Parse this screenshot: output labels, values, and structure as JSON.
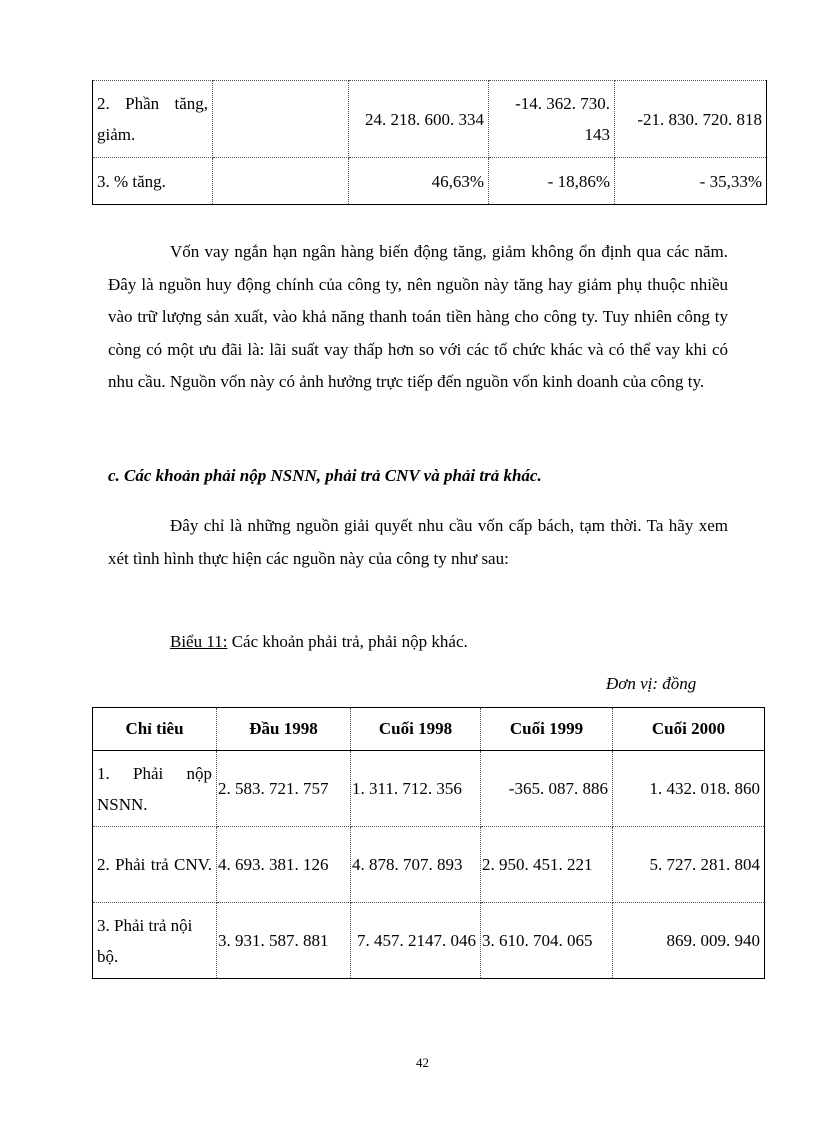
{
  "table_top": {
    "rows": [
      {
        "label": "2. Phần tăng, giảm.",
        "c1": "",
        "c2": "24. 218. 600. 334",
        "c3": "-14. 362. 730. 143",
        "c4": "-21. 830. 720. 818"
      },
      {
        "label": "3. % tăng.",
        "c1": "",
        "c2": "46,63%",
        "c3": "- 18,86%",
        "c4": "- 35,33%"
      }
    ]
  },
  "paragraph1": "Vốn vay ngắn hạn ngân hàng biến động tăng, giảm không ổn định qua các năm. Đây là nguồn huy động chính của công ty, nên nguồn này tăng hay giảm phụ thuộc nhiều vào trữ lượng sản xuất, vào khả năng thanh toán tiền hàng cho công ty. Tuy nhiên công ty còng có một ưu đãi là: lãi suất vay thấp hơn so với các tổ chức khác và có thể vay khi có nhu cầu. Nguồn vốn này có ảnh hưởng trực tiếp đến nguồn vốn kinh doanh của công ty.",
  "heading": "c. Các khoản phải nộp NSNN, phải trả CNV và phải trả khác.",
  "paragraph2": "Đây chỉ là những nguồn giải quyết nhu cầu vốn cấp bách, tạm thời. Ta hãy xem xét tình hình thực hiện các nguồn này của công ty như sau:",
  "caption": {
    "label": "Biểu 11:",
    "text": " Các khoản phải trả, phải nộp khác."
  },
  "unit": "Đơn vị: đồng",
  "table_bottom": {
    "headers": [
      "Chỉ tiêu",
      "Đầu 1998",
      "Cuối 1998",
      "Cuối 1999",
      "Cuối 2000"
    ],
    "rows": [
      {
        "label": "1. Phải nộp NSNN.",
        "c1": "2. 583. 721. 757",
        "c2": "1. 311. 712. 356",
        "c3": "-365. 087. 886",
        "c4": "1. 432. 018. 860"
      },
      {
        "label": "2. Phải trả CNV.",
        "c1": "4. 693. 381. 126",
        "c2": "4. 878. 707. 893",
        "c3": "2. 950. 451. 221",
        "c4": "5. 727. 281. 804"
      },
      {
        "label": "3. Phải trả nội bộ.",
        "c1": "3. 931. 587. 881",
        "c2": "7. 457. 2147. 046",
        "c3": "3. 610. 704. 065",
        "c4": "869. 009. 940"
      }
    ]
  },
  "page_number": "42"
}
